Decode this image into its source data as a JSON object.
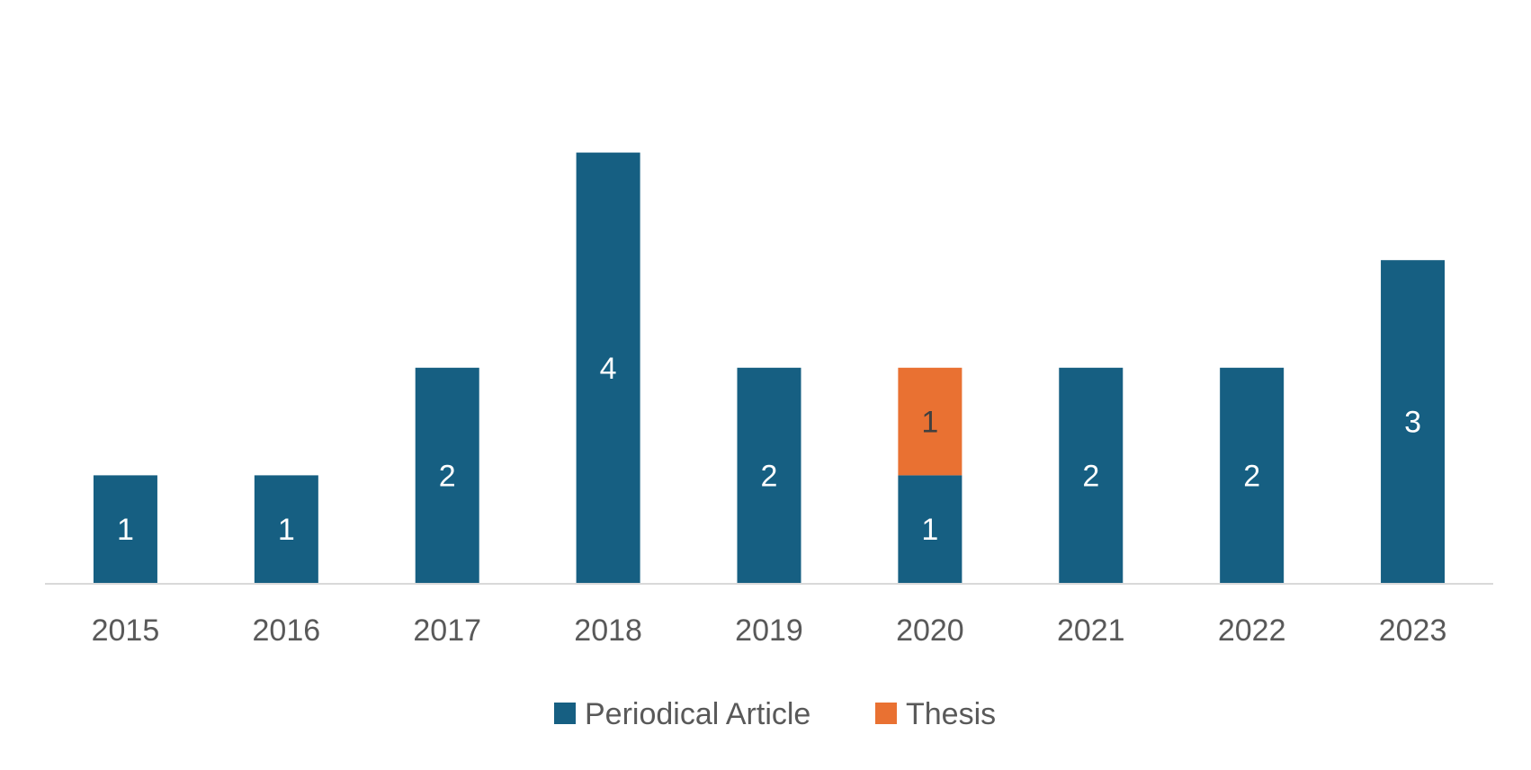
{
  "chart_data": {
    "type": "bar",
    "stacked": true,
    "categories": [
      "2015",
      "2016",
      "2017",
      "2018",
      "2019",
      "2020",
      "2021",
      "2022",
      "2023"
    ],
    "series": [
      {
        "name": "Periodical Article",
        "color": "#165F82",
        "label_color": "#FFFFFF",
        "values": [
          1,
          1,
          2,
          4,
          2,
          1,
          2,
          2,
          3
        ]
      },
      {
        "name": "Thesis",
        "color": "#E97132",
        "label_color": "#404040",
        "values": [
          0,
          0,
          0,
          0,
          0,
          1,
          0,
          0,
          0
        ]
      }
    ],
    "ylim": [
      0,
      5
    ],
    "grid": false,
    "legend_position": "bottom",
    "axis_color": "#D9D9D9"
  }
}
